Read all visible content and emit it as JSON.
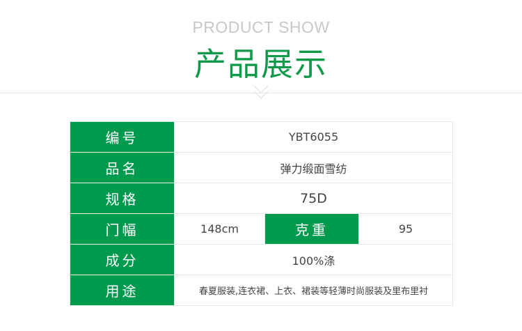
{
  "header": {
    "en_title": "PRODUCT SHOW",
    "cn_title": "产品展示"
  },
  "spec": {
    "code": {
      "label": "编号",
      "value": "YBT6055"
    },
    "name": {
      "label": "品名",
      "value": "弹力缎面雪纺"
    },
    "size": {
      "label": "规格",
      "value": "75D"
    },
    "width": {
      "label": "门幅",
      "value": "148cm"
    },
    "weight": {
      "label": "克重",
      "value": "95"
    },
    "composition": {
      "label": "成分",
      "value": "100%涤"
    },
    "usage": {
      "label": "用途",
      "value": "春夏服装,连衣裙、上衣、裙装等轻薄时尚服装及里布里衬"
    }
  },
  "colors": {
    "green": "#009a4e"
  }
}
